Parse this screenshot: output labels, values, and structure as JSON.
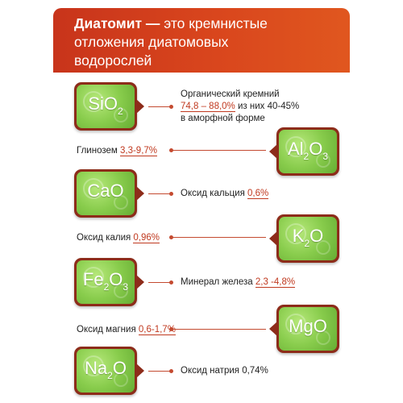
{
  "header": {
    "title_bold": "Диатомит —",
    "title_line1": " это кремнистые",
    "title_line2": "отложения диатомовых",
    "title_line3": "водорослей"
  },
  "items": [
    {
      "formula_main": "SiO",
      "formula_sub1": "2",
      "label_line1": "Органический кремний",
      "label_highlight": "74,8 – 88,0%",
      "label_after": " из них 40-45%",
      "label_line3": "в аморфной форме"
    },
    {
      "formula_main": "Al",
      "formula_sub1": "2",
      "formula_mid": "O",
      "formula_sub2": "3",
      "label_before": "Глинозем ",
      "label_highlight": "3,3-9,7%"
    },
    {
      "formula_main": "CaO",
      "label_before": "Оксид кальция ",
      "label_highlight": "0,6%"
    },
    {
      "formula_main": "K",
      "formula_sub1": "2",
      "formula_mid": "O",
      "label_before": "Оксид калия ",
      "label_highlight": "0,96%"
    },
    {
      "formula_main": "Fe",
      "formula_sub1": "2",
      "formula_mid": "O",
      "formula_sub2": "3",
      "label_before": "Минерал железа ",
      "label_highlight": "2,3 -4,8%"
    },
    {
      "formula_main": "MgO",
      "label_before": "Оксид магния ",
      "label_highlight": "0,6-1,7%"
    },
    {
      "formula_main": "Na",
      "formula_sub1": "2",
      "formula_mid": "O",
      "label_before": "Оксид натрия 0,74%"
    }
  ],
  "colors": {
    "banner": "#d9461d",
    "badge_frame": "#8d2c1a",
    "badge_fill": "#88cc4c",
    "highlight": "#c0391f"
  }
}
